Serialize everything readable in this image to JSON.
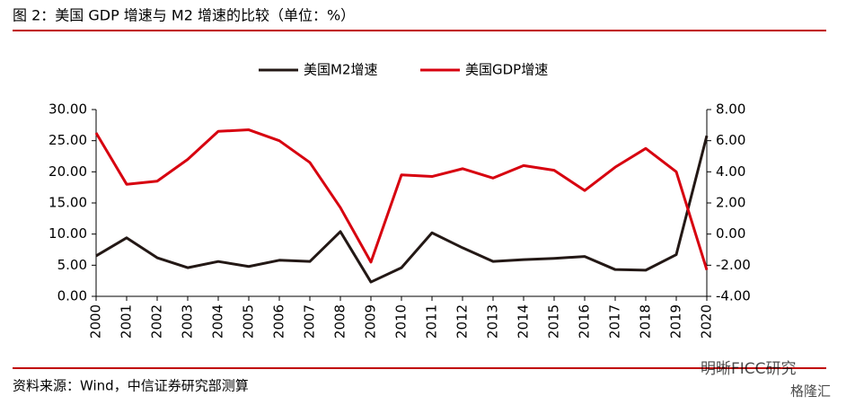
{
  "chart_data": {
    "type": "line",
    "title": "图 2：美国 GDP 增速与 M2 增速的比较（单位：%）",
    "source": "资料来源：Wind，中信证券研究部测算",
    "categories": [
      "2000",
      "2001",
      "2002",
      "2003",
      "2004",
      "2005",
      "2006",
      "2007",
      "2008",
      "2009",
      "2010",
      "2011",
      "2012",
      "2013",
      "2014",
      "2015",
      "2016",
      "2017",
      "2018",
      "2019",
      "2020"
    ],
    "series": [
      {
        "name": "美国M2增速",
        "color": "#231815",
        "axis": "y",
        "values": [
          6.5,
          9.4,
          6.2,
          4.6,
          5.6,
          4.8,
          5.8,
          5.6,
          10.4,
          2.3,
          4.6,
          10.2,
          7.8,
          5.6,
          5.9,
          6.1,
          6.4,
          4.3,
          4.2,
          6.7,
          25.8
        ]
      },
      {
        "name": "美国GDP增速",
        "color": "#d7000f",
        "axis": "y2",
        "values": [
          6.5,
          3.2,
          3.4,
          4.8,
          6.6,
          6.7,
          6.0,
          4.6,
          1.7,
          -1.8,
          3.8,
          3.7,
          4.2,
          3.6,
          4.4,
          4.1,
          2.8,
          4.3,
          5.5,
          4.0,
          -2.3
        ]
      }
    ],
    "ylim": [
      0,
      30
    ],
    "yticks": [
      {
        "value": 0,
        "label": "0.00"
      },
      {
        "value": 5,
        "label": "5.00"
      },
      {
        "value": 10,
        "label": "10.00"
      },
      {
        "value": 15,
        "label": "15.00"
      },
      {
        "value": 20,
        "label": "20.00"
      },
      {
        "value": 25,
        "label": "25.00"
      },
      {
        "value": 30,
        "label": "30.00"
      }
    ],
    "y2lim": [
      -4,
      8
    ],
    "y2ticks": [
      {
        "value": -4,
        "label": "-4.00"
      },
      {
        "value": -2,
        "label": "-2.00"
      },
      {
        "value": 0,
        "label": "0.00"
      },
      {
        "value": 2,
        "label": "2.00"
      },
      {
        "value": 4,
        "label": "4.00"
      },
      {
        "value": 6,
        "label": "6.00"
      },
      {
        "value": 8,
        "label": "8.00"
      }
    ],
    "legend": "top"
  },
  "watermarks": [
    "明晰FICC研究",
    "格隆汇"
  ]
}
